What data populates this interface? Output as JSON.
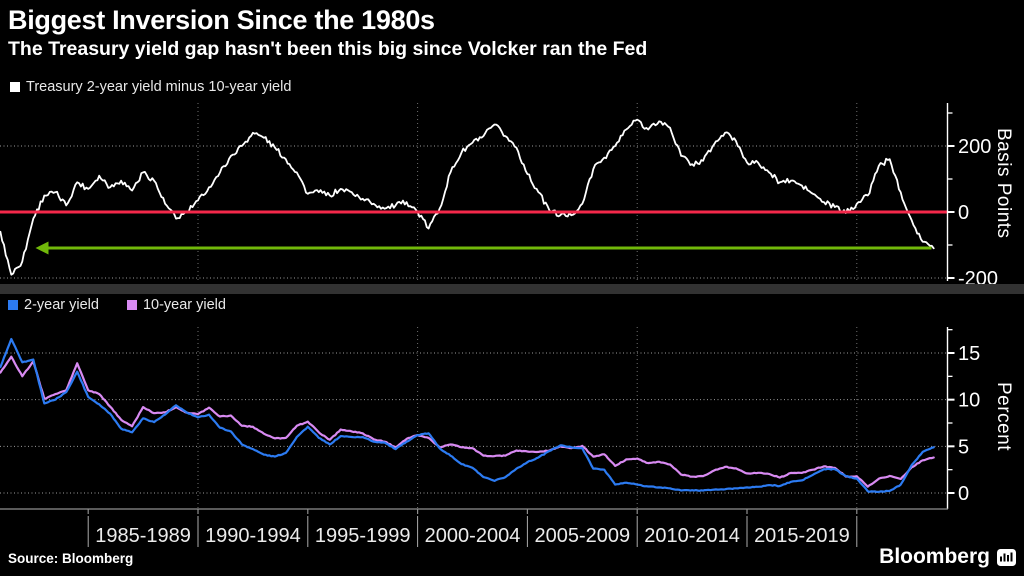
{
  "header": {
    "title": "Biggest Inversion Since the 1980s",
    "subtitle": "The Treasury yield gap hasn't been this big since Volcker ran the Fed"
  },
  "footer": {
    "source": "Source: Bloomberg",
    "brand": "Bloomberg"
  },
  "colors": {
    "background": "#000000",
    "spread_line": "#ffffff",
    "zero_line": "#f4284a",
    "arrow": "#71b80a",
    "two_year": "#2c7bf2",
    "ten_year": "#d88af2",
    "h_grid": "#9c9c9c",
    "v_grid": "#6f6f6f",
    "axis": "#ffffff"
  },
  "x_axis": {
    "boundaries": [
      1985,
      1990,
      1995,
      2000,
      2005,
      2010,
      2015,
      2020
    ],
    "labels": [
      "1985-1989",
      "1990-1994",
      "1995-1999",
      "2000-2004",
      "2005-2009",
      "2010-2014",
      "2015-2019"
    ],
    "grid_years": [
      1990,
      2000,
      2010,
      2020
    ]
  },
  "chart_data": [
    {
      "type": "line",
      "panel": "top",
      "title": "Treasury 2-year yield minus 10-year yield",
      "ylabel": "Basis Points",
      "yticks": [
        200,
        0,
        -200
      ],
      "yticks_minor": [
        300,
        100,
        -100
      ],
      "ylim": [
        -210,
        330
      ],
      "x_years": [
        1981,
        1981.5,
        1982,
        1982.5,
        1983,
        1983.5,
        1984,
        1984.5,
        1985,
        1985.5,
        1986,
        1986.5,
        1987,
        1987.5,
        1988,
        1988.5,
        1989,
        1989.5,
        1990,
        1990.5,
        1991,
        1991.5,
        1992,
        1992.5,
        1993,
        1993.5,
        1994,
        1994.5,
        1995,
        1995.5,
        1996,
        1996.5,
        1997,
        1997.5,
        1998,
        1998.5,
        1999,
        1999.5,
        2000,
        2000.5,
        2001,
        2001.5,
        2002,
        2002.5,
        2003,
        2003.5,
        2004,
        2004.5,
        2005,
        2005.5,
        2006,
        2006.5,
        2007,
        2007.5,
        2008,
        2008.5,
        2009,
        2009.5,
        2010,
        2010.5,
        2011,
        2011.5,
        2012,
        2012.5,
        2013,
        2013.5,
        2014,
        2014.5,
        2015,
        2015.5,
        2016,
        2016.5,
        2017,
        2017.5,
        2018,
        2018.5,
        2019,
        2019.5,
        2020,
        2020.5,
        2021,
        2021.5,
        2022,
        2022.5,
        2023,
        2023.5
      ],
      "series": [
        {
          "name": "Treasury 2-year yield minus 10-year yield",
          "color": "#ffffff",
          "values": [
            -60,
            -190,
            -150,
            -20,
            50,
            60,
            20,
            90,
            70,
            110,
            75,
            95,
            65,
            120,
            95,
            25,
            -20,
            0,
            35,
            75,
            120,
            170,
            200,
            240,
            225,
            195,
            160,
            120,
            55,
            60,
            50,
            70,
            60,
            40,
            25,
            10,
            20,
            30,
            0,
            -50,
            10,
            120,
            180,
            210,
            230,
            265,
            230,
            195,
            115,
            60,
            5,
            -10,
            -10,
            25,
            130,
            165,
            200,
            250,
            280,
            250,
            275,
            255,
            170,
            145,
            155,
            205,
            240,
            215,
            150,
            150,
            120,
            90,
            95,
            80,
            55,
            30,
            15,
            -3,
            25,
            50,
            140,
            160,
            60,
            -25,
            -90,
            -110
          ]
        }
      ],
      "annotations": {
        "zero_line": {
          "value": 0,
          "color": "#f4284a"
        },
        "arrow": {
          "value": -109,
          "start_year": 2023.4,
          "end_year": 1982.6,
          "direction": "left",
          "color": "#71b80a"
        }
      }
    },
    {
      "type": "line",
      "panel": "bottom",
      "ylabel": "Percent",
      "yticks": [
        15,
        10,
        5,
        0
      ],
      "yticks_minor": [
        17.5,
        12.5,
        7.5,
        2.5
      ],
      "ylim": [
        -1.7,
        17.8
      ],
      "x_years": [
        1981,
        1981.5,
        1982,
        1982.5,
        1983,
        1983.5,
        1984,
        1984.5,
        1985,
        1985.5,
        1986,
        1986.5,
        1987,
        1987.5,
        1988,
        1988.5,
        1989,
        1989.5,
        1990,
        1990.5,
        1991,
        1991.5,
        1992,
        1992.5,
        1993,
        1993.5,
        1994,
        1994.5,
        1995,
        1995.5,
        1996,
        1996.5,
        1997,
        1997.5,
        1998,
        1998.5,
        1999,
        1999.5,
        2000,
        2000.5,
        2001,
        2001.5,
        2002,
        2002.5,
        2003,
        2003.5,
        2004,
        2004.5,
        2005,
        2005.5,
        2006,
        2006.5,
        2007,
        2007.5,
        2008,
        2008.5,
        2009,
        2009.5,
        2010,
        2010.5,
        2011,
        2011.5,
        2012,
        2012.5,
        2013,
        2013.5,
        2014,
        2014.5,
        2015,
        2015.5,
        2016,
        2016.5,
        2017,
        2017.5,
        2018,
        2018.5,
        2019,
        2019.5,
        2020,
        2020.5,
        2021,
        2021.5,
        2022,
        2022.5,
        2023,
        2023.5
      ],
      "series": [
        {
          "name": "2-year yield",
          "color": "#2c7bf2",
          "values": [
            13.5,
            16.5,
            14.0,
            14.3,
            9.6,
            10.0,
            10.8,
            13.0,
            10.3,
            9.5,
            8.5,
            6.9,
            6.5,
            8.0,
            7.6,
            8.4,
            9.4,
            8.6,
            8.1,
            8.4,
            7.0,
            6.6,
            5.2,
            4.7,
            4.1,
            3.9,
            4.3,
            6.0,
            7.1,
            5.9,
            5.2,
            6.1,
            6.0,
            6.0,
            5.5,
            5.4,
            4.7,
            5.5,
            6.2,
            6.4,
            4.8,
            4.0,
            3.1,
            2.7,
            1.7,
            1.3,
            1.7,
            2.6,
            3.3,
            3.8,
            4.5,
            5.1,
            4.9,
            4.8,
            2.6,
            2.5,
            0.9,
            1.1,
            0.9,
            0.7,
            0.6,
            0.5,
            0.27,
            0.3,
            0.26,
            0.36,
            0.4,
            0.5,
            0.6,
            0.66,
            0.85,
            0.75,
            1.2,
            1.35,
            1.95,
            2.55,
            2.55,
            1.8,
            1.55,
            0.18,
            0.13,
            0.23,
            0.9,
            3.0,
            4.4,
            4.9
          ]
        },
        {
          "name": "10-year yield",
          "color": "#d88af2",
          "values": [
            12.9,
            14.6,
            12.5,
            14.1,
            10.1,
            10.6,
            11.0,
            13.9,
            11.0,
            10.6,
            9.25,
            7.85,
            7.15,
            9.2,
            8.55,
            8.65,
            9.2,
            8.6,
            8.45,
            9.15,
            8.2,
            8.3,
            7.2,
            7.1,
            6.35,
            5.85,
            5.9,
            7.2,
            7.65,
            6.5,
            5.7,
            6.8,
            6.6,
            6.4,
            5.75,
            5.5,
            4.9,
            5.8,
            6.2,
            5.9,
            4.9,
            5.2,
            4.9,
            4.8,
            4.0,
            3.95,
            4.0,
            4.55,
            4.45,
            4.4,
            4.55,
            5.0,
            4.8,
            5.05,
            3.9,
            4.15,
            2.9,
            3.6,
            3.7,
            3.2,
            3.35,
            3.05,
            1.97,
            1.75,
            1.81,
            2.41,
            2.8,
            2.65,
            2.1,
            2.16,
            2.05,
            1.65,
            2.15,
            2.15,
            2.5,
            2.85,
            2.7,
            1.77,
            1.8,
            0.68,
            1.53,
            1.83,
            1.5,
            2.75,
            3.5,
            3.8
          ]
        }
      ]
    }
  ]
}
